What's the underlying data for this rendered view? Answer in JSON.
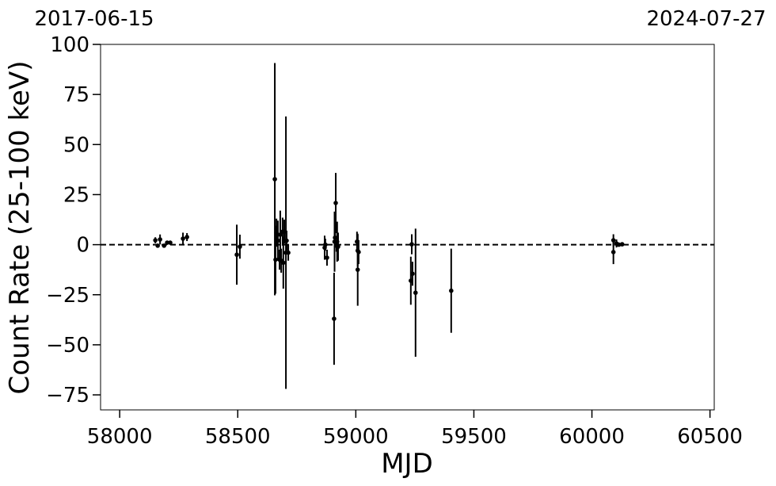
{
  "chart_data": {
    "type": "errorbar",
    "top_left_label": "2017-06-15",
    "top_right_label": "2024-07-27",
    "xlabel": "MJD",
    "ylabel": "Count Rate (25-100 keV)",
    "color": "#000000",
    "x": [
      58151,
      58161,
      58171,
      58188,
      58201,
      58214,
      58268,
      58285,
      58496,
      58509,
      58657,
      58660,
      58664,
      58670,
      58677,
      58680,
      58684,
      58690,
      58693,
      58697,
      58704,
      58707,
      58714,
      58868,
      58871,
      58878,
      58908,
      58910,
      58912,
      58915,
      58918,
      58921,
      58925,
      59005,
      59008,
      59008,
      59012,
      59233,
      59237,
      59240,
      59253,
      59404,
      60091,
      60091,
      60104,
      60114,
      60128
    ],
    "values": [
      2.2,
      -0.5,
      2.6,
      -0.5,
      1,
      1,
      3,
      3.8,
      -5,
      -1,
      32.7,
      -7.5,
      6,
      2,
      -7.5,
      5,
      -8,
      6.5,
      -9,
      6.5,
      -4,
      2,
      -4,
      -1.5,
      0,
      -6.5,
      -37,
      1.5,
      3.5,
      20.8,
      -0.5,
      1.5,
      -1,
      1.5,
      -3,
      -12.5,
      -3.7,
      -18,
      0.2,
      -14.5,
      -24,
      -23,
      2.2,
      -3.7,
      0.6,
      0,
      0.2
    ],
    "errors": [
      1.5,
      1,
      2.5,
      1,
      1,
      1,
      3,
      2,
      15,
      6,
      58,
      17,
      7,
      10,
      5,
      12,
      6,
      7,
      13,
      6,
      68,
      5,
      4,
      6,
      3,
      4,
      23,
      15,
      3,
      15,
      3,
      10,
      7,
      5,
      8,
      18,
      6,
      12,
      5,
      6,
      32,
      21,
      3,
      6,
      2,
      1,
      1
    ],
    "hline": 0,
    "xlim": [
      57919,
      60518
    ],
    "ylim": [
      -82.5,
      100
    ],
    "xticks": [
      58000,
      58500,
      59000,
      59500,
      60000,
      60500
    ],
    "yticks": [
      100,
      75,
      50,
      25,
      0,
      {
        "value": -25,
        "label": "−25"
      },
      {
        "value": -50,
        "label": "−50"
      },
      {
        "value": -75,
        "label": "−75"
      }
    ]
  }
}
